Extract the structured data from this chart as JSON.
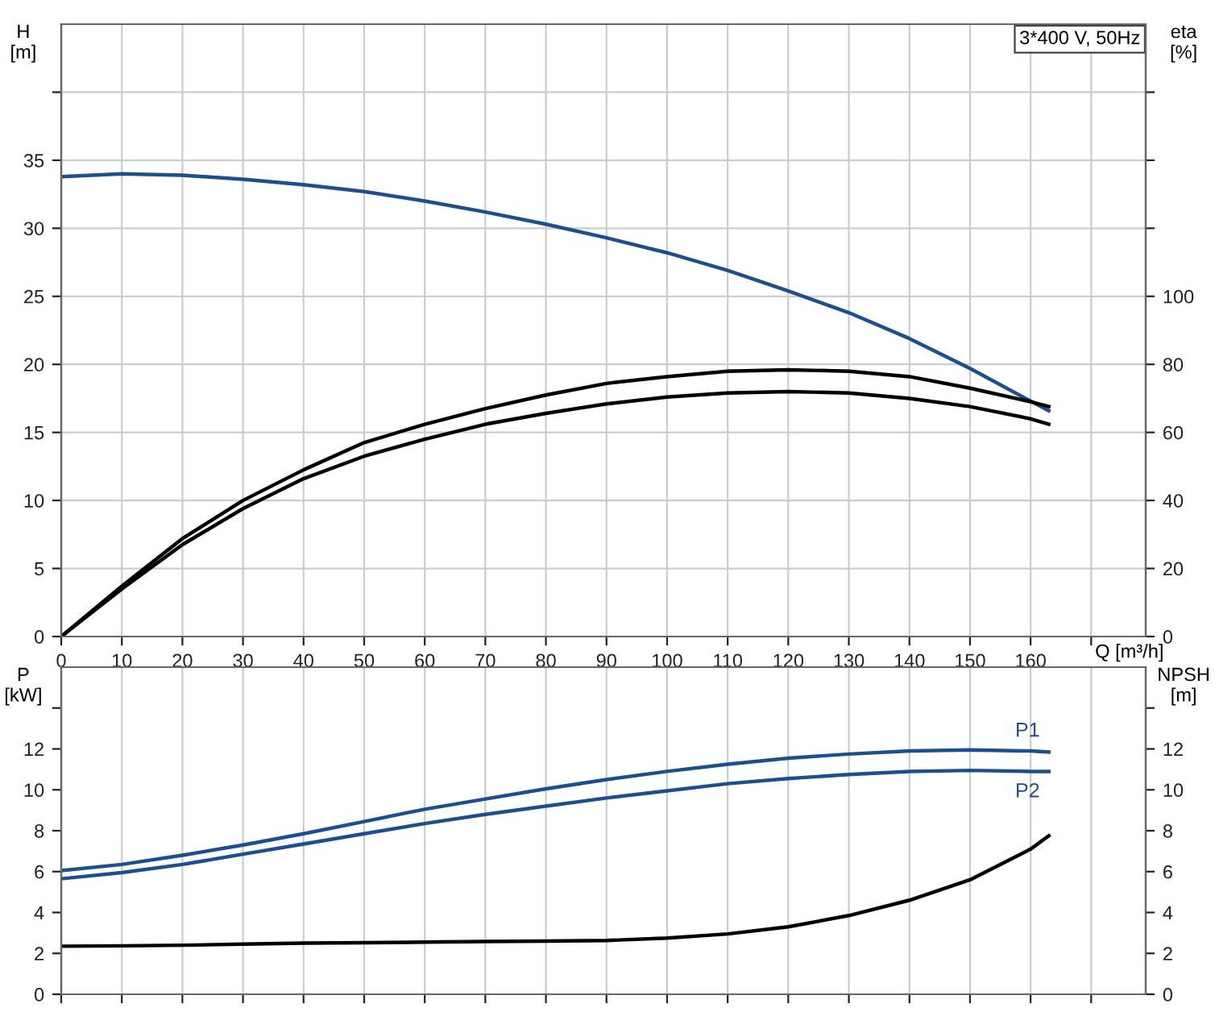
{
  "chart_data": [
    {
      "type": "line",
      "xlabel": "Q [m³/h]",
      "ylabel": "H\n[m]",
      "y2label": "eta\n[%]",
      "annotations": [
        "3*400 V, 50Hz"
      ],
      "xlim": [
        0,
        179
      ],
      "xticks": [
        0,
        10,
        20,
        30,
        40,
        50,
        60,
        70,
        80,
        90,
        100,
        110,
        120,
        130,
        140,
        150,
        160,
        {
          "value": 170,
          "label": null
        }
      ],
      "ylim": [
        0,
        45
      ],
      "yticks": [
        0,
        5,
        10,
        15,
        20,
        25,
        30,
        35,
        {
          "value": 40,
          "label": null
        }
      ],
      "y2lim": [
        0,
        180
      ],
      "y2ticks": [
        0,
        20,
        40,
        60,
        80,
        100,
        {
          "value": 120,
          "label": null
        },
        {
          "value": 140,
          "label": null
        },
        {
          "value": 160,
          "label": null
        }
      ],
      "grid": true,
      "legend": false,
      "line_style": "solid",
      "marker": "none",
      "x": [
        0,
        10,
        20,
        30,
        40,
        50,
        60,
        70,
        80,
        90,
        100,
        110,
        120,
        130,
        140,
        150,
        160,
        163
      ],
      "series": [
        {
          "color": "#1b4f8f",
          "values": [
            33.8,
            34.0,
            33.9,
            33.6,
            33.2,
            32.7,
            32.0,
            31.2,
            30.3,
            29.3,
            28.2,
            26.9,
            25.4,
            23.8,
            21.9,
            19.7,
            17.3,
            16.6
          ]
        },
        {
          "color": "#000000",
          "axis": "y2",
          "values": [
            0,
            14.8,
            28.8,
            40,
            49,
            57,
            62.4,
            67,
            71,
            74.4,
            76.4,
            78,
            78.4,
            78,
            76.4,
            73,
            69,
            67.6
          ]
        },
        {
          "color": "#000000",
          "axis": "y2",
          "values": [
            0,
            14,
            27,
            37.6,
            46.4,
            53,
            58,
            62.4,
            65.6,
            68.4,
            70.4,
            71.6,
            72,
            71.6,
            70,
            67.6,
            64,
            62.4
          ]
        }
      ]
    },
    {
      "type": "line",
      "ylabel": "P\n[kW]",
      "y2label": "NPSH\n[m]",
      "tick_labels": "y",
      "xlim": [
        0,
        179
      ],
      "xticks": [
        0,
        10,
        20,
        30,
        40,
        50,
        60,
        70,
        80,
        90,
        100,
        110,
        120,
        130,
        140,
        150,
        160,
        170
      ],
      "ylim": [
        0,
        16
      ],
      "yticks": [
        0,
        2,
        4,
        6,
        8,
        10,
        12,
        {
          "value": 14,
          "label": null
        }
      ],
      "y2lim": [
        0,
        16
      ],
      "y2ticks": [
        0,
        2,
        4,
        6,
        8,
        10,
        12,
        {
          "value": 14,
          "label": null
        }
      ],
      "grid": "x",
      "legend": false,
      "line_style": "solid",
      "marker": "none",
      "x": [
        0,
        10,
        20,
        30,
        40,
        50,
        60,
        70,
        80,
        90,
        100,
        110,
        120,
        130,
        140,
        150,
        160,
        163
      ],
      "series": [
        {
          "name": "P1",
          "color": "#1b4f8f",
          "values": [
            6.05,
            6.35,
            6.8,
            7.3,
            7.85,
            8.45,
            9.05,
            9.55,
            10.05,
            10.5,
            10.9,
            11.25,
            11.55,
            11.75,
            11.9,
            11.95,
            11.9,
            11.85
          ]
        },
        {
          "name": "P2",
          "color": "#1b4f8f",
          "values": [
            5.65,
            5.95,
            6.35,
            6.85,
            7.35,
            7.85,
            8.35,
            8.8,
            9.2,
            9.6,
            9.95,
            10.3,
            10.55,
            10.75,
            10.9,
            10.95,
            10.9,
            10.9
          ]
        },
        {
          "color": "#000000",
          "axis": "y2",
          "values": [
            2.35,
            2.37,
            2.4,
            2.45,
            2.5,
            2.52,
            2.55,
            2.58,
            2.6,
            2.63,
            2.75,
            2.95,
            3.3,
            3.85,
            4.6,
            5.6,
            7.1,
            7.75
          ]
        }
      ]
    }
  ]
}
